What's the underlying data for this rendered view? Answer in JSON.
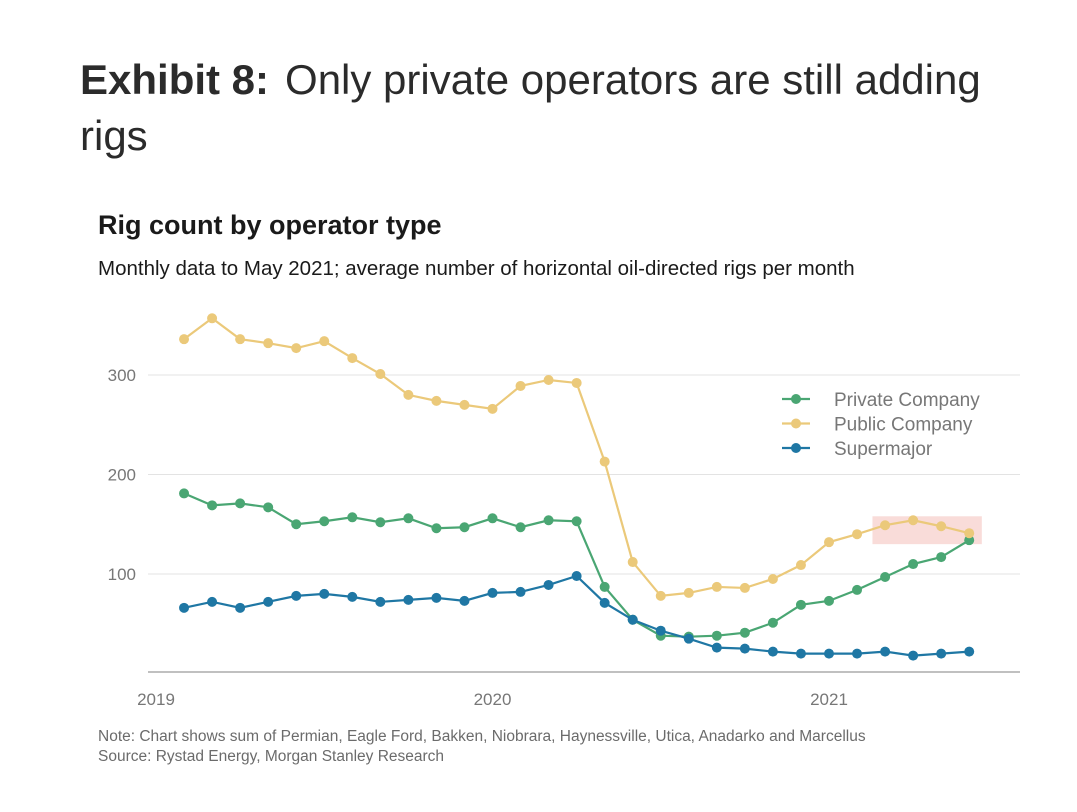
{
  "header": {
    "exhibit_label": "Exhibit 8:",
    "exhibit_title": "Only private operators are still adding rigs"
  },
  "chart_data": {
    "type": "line",
    "title": "Rig count by operator type",
    "subtitle": "Monthly data to May 2021; average number of horizontal oil-directed rigs per month",
    "x_months": [
      "2019-02",
      "2019-03",
      "2019-04",
      "2019-05",
      "2019-06",
      "2019-07",
      "2019-08",
      "2019-09",
      "2019-10",
      "2019-11",
      "2019-12",
      "2020-01",
      "2020-02",
      "2020-03",
      "2020-04",
      "2020-05",
      "2020-06",
      "2020-07",
      "2020-08",
      "2020-09",
      "2020-10",
      "2020-11",
      "2020-12",
      "2021-01",
      "2021-02",
      "2021-03",
      "2021-04",
      "2021-05",
      "2021-06"
    ],
    "x_ticks": [
      {
        "label": "2019",
        "month": "2019-01"
      },
      {
        "label": "2020",
        "month": "2020-01"
      },
      {
        "label": "2021",
        "month": "2021-01"
      }
    ],
    "y_ticks": [
      100,
      200,
      300
    ],
    "ylim": [
      2,
      360
    ],
    "grid": true,
    "legend_position": "top-right",
    "series": [
      {
        "name": "Private Company",
        "color": "#4aa673",
        "values": [
          181,
          169,
          171,
          167,
          150,
          153,
          157,
          152,
          156,
          146,
          147,
          156,
          147,
          154,
          153,
          87,
          54,
          38,
          37,
          38,
          41,
          51,
          69,
          73,
          84,
          97,
          110,
          117,
          134
        ]
      },
      {
        "name": "Public Company",
        "color": "#ebc97a",
        "values": [
          336,
          357,
          336,
          332,
          327,
          334,
          317,
          301,
          280,
          274,
          270,
          266,
          289,
          295,
          292,
          213,
          112,
          78,
          81,
          87,
          86,
          95,
          109,
          132,
          140,
          149,
          154,
          148,
          141
        ]
      },
      {
        "name": "Supermajor",
        "color": "#1f77a4",
        "values": [
          66,
          72,
          66,
          72,
          78,
          80,
          77,
          72,
          74,
          76,
          73,
          81,
          82,
          89,
          98,
          71,
          54,
          43,
          35,
          26,
          25,
          22,
          20,
          20,
          20,
          22,
          18,
          20,
          22
        ]
      }
    ],
    "highlight": {
      "from": "2021-03",
      "to": "2021-06",
      "color": "#f8d6d2"
    },
    "note": "Note: Chart shows sum of Permian, Eagle Ford, Bakken, Niobrara, Haynessville, Utica, Anadarko and Marcellus",
    "source": "Source: Rystad Energy, Morgan Stanley Research"
  }
}
